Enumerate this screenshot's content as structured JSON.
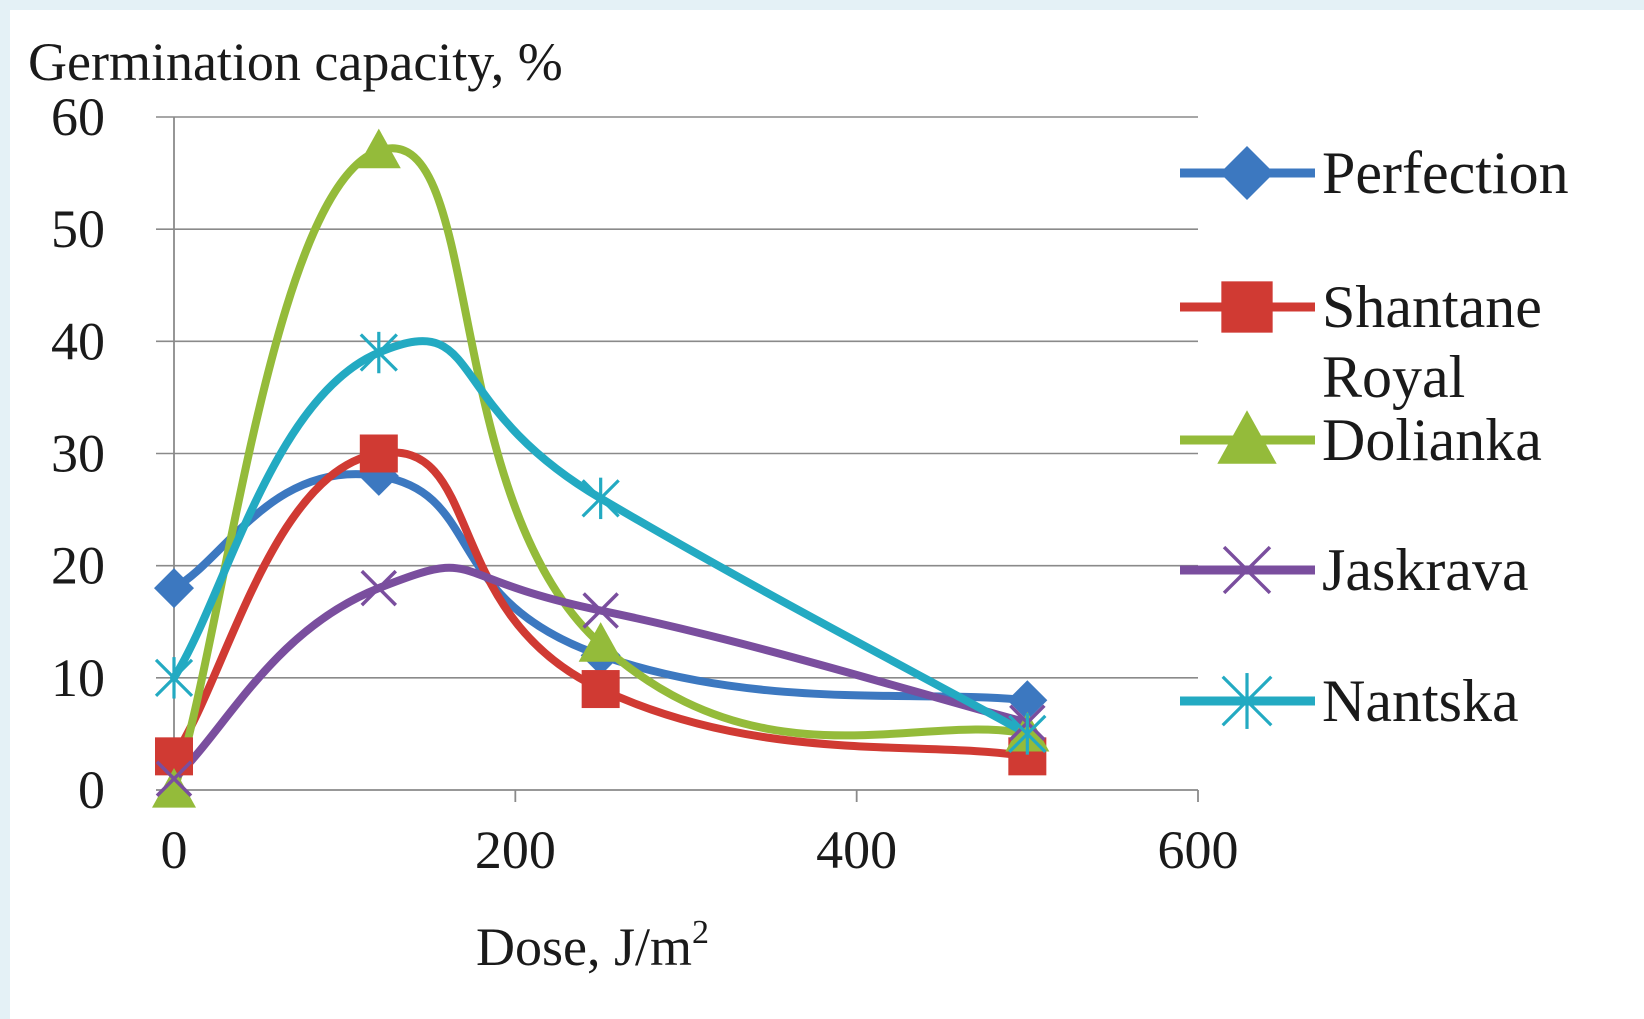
{
  "chart_data": {
    "type": "line",
    "title": "",
    "ylabel": "Germination capacity, %",
    "xlabel_main": "Dose, J/m",
    "xlabel_sup": "2",
    "xlim": [
      0,
      600
    ],
    "ylim": [
      0,
      60
    ],
    "xticks": [
      0,
      200,
      400,
      600
    ],
    "yticks": [
      0,
      10,
      20,
      30,
      40,
      50,
      60
    ],
    "grid": "horizontal",
    "legend_position": "right",
    "x": [
      0,
      120,
      250,
      500
    ],
    "series": [
      {
        "name": "Perfection",
        "values": [
          18,
          28,
          12,
          8
        ],
        "color": "#3c78c0",
        "marker": "diamond"
      },
      {
        "name_line1": "Shantane",
        "name_line2": "Royal",
        "values": [
          3,
          30,
          9,
          3
        ],
        "color": "#d03a33",
        "marker": "square"
      },
      {
        "name": "Dolianka",
        "values": [
          0,
          57,
          13,
          5
        ],
        "color": "#94bb3a",
        "marker": "triangle"
      },
      {
        "name": "Jaskrava",
        "values": [
          1,
          18,
          16,
          6
        ],
        "color": "#7a4e9e",
        "marker": "x"
      },
      {
        "name": "Nantska",
        "values": [
          10,
          39,
          26,
          5
        ],
        "color": "#23aac2",
        "marker": "star"
      }
    ]
  }
}
